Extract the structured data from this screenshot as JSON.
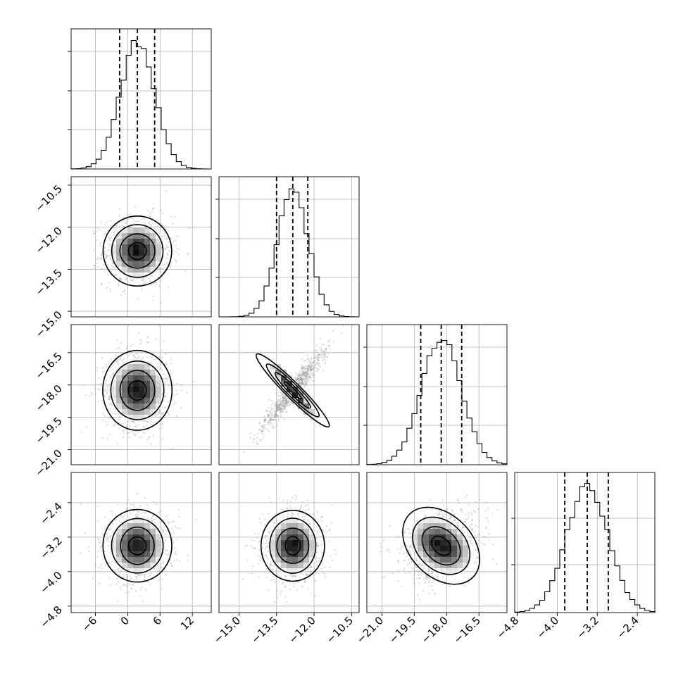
{
  "chart_data": {
    "type": "corner",
    "parameters": [
      {
        "xlim": [
          -10.5,
          15.5
        ],
        "ylim": [
          -12.5,
          9.5
        ],
        "ticks": [
          -6,
          0,
          6,
          12
        ],
        "tick_labels": [
          "−6",
          "0",
          "6",
          "12"
        ],
        "quantiles": [
          -1.5,
          1.8,
          5.0
        ],
        "mean": 1.8,
        "sd": 3.2,
        "hist_y_gridlines": 3
      },
      {
        "xlim": [
          -15.8,
          -10.2
        ],
        "ylim": [
          -10.2,
          -15.2
        ],
        "ticks": [
          -15.0,
          -13.5,
          -12.0,
          -10.5
        ],
        "tick_labels": [
          "−15.0",
          "−13.5",
          "−12.0",
          "−10.5"
        ],
        "quantiles": [
          -13.5,
          -12.85,
          -12.25
        ],
        "mean": -12.85,
        "sd": 0.62,
        "hist_y_gridlines": 3
      },
      {
        "xlim": [
          -21.7,
          -15.2
        ],
        "ylim": [
          -15.2,
          -21.7
        ],
        "ticks": [
          -21.0,
          -19.5,
          -18.0,
          -16.5
        ],
        "tick_labels": [
          "−21.0",
          "−19.5",
          "−18.0",
          "−16.5"
        ],
        "quantiles": [
          -19.2,
          -18.25,
          -17.3
        ],
        "mean": -18.25,
        "sd": 0.93,
        "hist_y_gridlines": 3
      },
      {
        "xlim": [
          -4.85,
          -2.05
        ],
        "ylim": [
          -1.7,
          -4.95
        ],
        "ticks": [
          -4.8,
          -4.0,
          -3.2,
          -2.4
        ],
        "tick_labels": [
          "−4.8",
          "−4.0",
          "−3.2",
          "−2.4"
        ],
        "quantiles": [
          -3.85,
          -3.4,
          -2.98
        ],
        "mean": -3.4,
        "sd": 0.42,
        "hist_y_gridlines": 2
      }
    ],
    "correlations": [
      [
        1,
        0,
        0,
        0
      ],
      [
        0,
        1,
        0.95,
        0
      ],
      [
        0,
        0.95,
        1,
        0.3
      ],
      [
        0,
        0,
        0.3,
        1
      ]
    ],
    "y_tick_labels": {
      "row1": [
        "−10.5",
        "−12.0",
        "−13.5",
        "−15.0"
      ],
      "row2": [
        "−16.5",
        "−18.0",
        "−19.5",
        "−21.0"
      ],
      "row3": [
        "−2.4",
        "−3.2",
        "−4.0",
        "−4.8"
      ]
    },
    "y_ticks": {
      "row1": [
        -10.5,
        -12.0,
        -13.5,
        -15.0
      ],
      "row2": [
        -16.5,
        -18.0,
        -19.5,
        -21.0
      ],
      "row3": [
        -2.4,
        -3.2,
        -4.0,
        -4.8
      ]
    },
    "grid": true,
    "quantile_lines": "dashed"
  }
}
